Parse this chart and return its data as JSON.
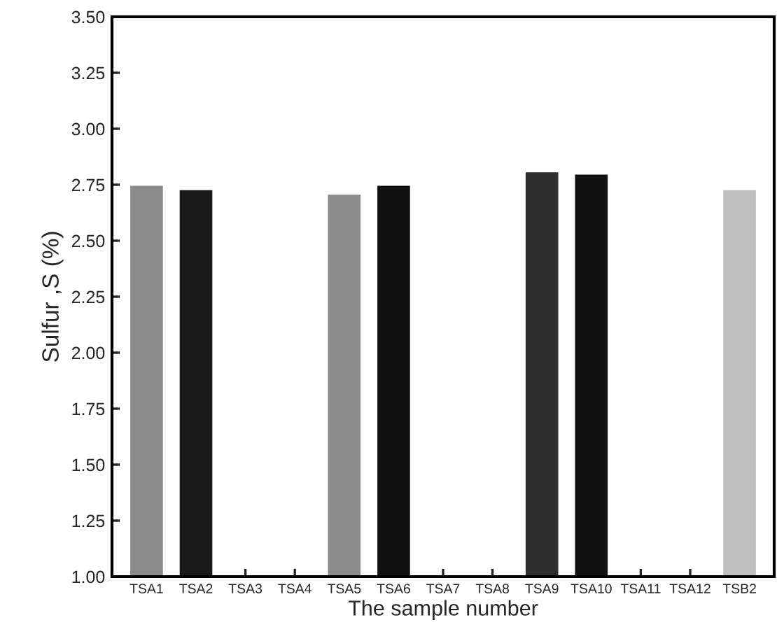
{
  "chart_data": {
    "type": "bar",
    "xlabel": "The sample number",
    "ylabel": "Sulfur ,S (%)",
    "categories": [
      "TSA1",
      "TSA2",
      "TSA3",
      "TSA4",
      "TSA5",
      "TSA6",
      "TSA7",
      "TSA8",
      "TSA9",
      "TSA10",
      "TSA11",
      "TSA12",
      "TSB2"
    ],
    "values": [
      2.75,
      2.73,
      null,
      null,
      2.71,
      2.75,
      null,
      null,
      2.81,
      2.8,
      null,
      null,
      2.73
    ],
    "colors": [
      "#8a8a8a",
      "#1a1a1a",
      null,
      null,
      "#8a8a8a",
      "#111111",
      null,
      null,
      "#2e2e2e",
      "#111111",
      null,
      null,
      "#c0c0c0"
    ],
    "ylim": [
      1.0,
      3.5
    ],
    "yticks": [
      {
        "value": 1.0,
        "label": "1.00"
      },
      {
        "value": 1.25,
        "label": "1.25"
      },
      {
        "value": 1.5,
        "label": "1.50"
      },
      {
        "value": 1.75,
        "label": "1.75"
      },
      {
        "value": 2.0,
        "label": "2.00"
      },
      {
        "value": 2.25,
        "label": "2.25"
      },
      {
        "value": 2.5,
        "label": "2.50"
      },
      {
        "value": 2.75,
        "label": "2.75"
      },
      {
        "value": 3.0,
        "label": "3.00"
      },
      {
        "value": 3.25,
        "label": "3.25"
      },
      {
        "value": 3.5,
        "label": "3.50"
      }
    ],
    "grid": false
  }
}
